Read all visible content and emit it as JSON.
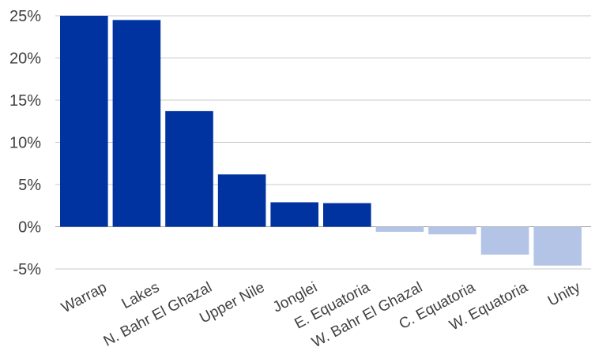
{
  "chart_data": {
    "type": "bar",
    "categories": [
      "Warrap",
      "Lakes",
      "N. Bahr El Ghazal",
      "Upper Nile",
      "Jonglei",
      "E. Equatoria",
      "W. Bahr El Ghazal",
      "C. Equatoria",
      "W. Equatoria",
      "Unity"
    ],
    "values": [
      25.0,
      24.5,
      13.7,
      6.2,
      2.9,
      2.8,
      -0.6,
      -0.9,
      -3.3,
      -4.6
    ],
    "ylim": [
      -5,
      25
    ],
    "yticks": [
      -5,
      0,
      5,
      10,
      15,
      20,
      25
    ],
    "ytick_labels": [
      "-5%",
      "0%",
      "5%",
      "10%",
      "15%",
      "20%",
      "25%"
    ],
    "grid": true,
    "colors": {
      "positive": "#0033a0",
      "negative": "#b4c4e6"
    },
    "title": "",
    "xlabel": "",
    "ylabel": ""
  }
}
